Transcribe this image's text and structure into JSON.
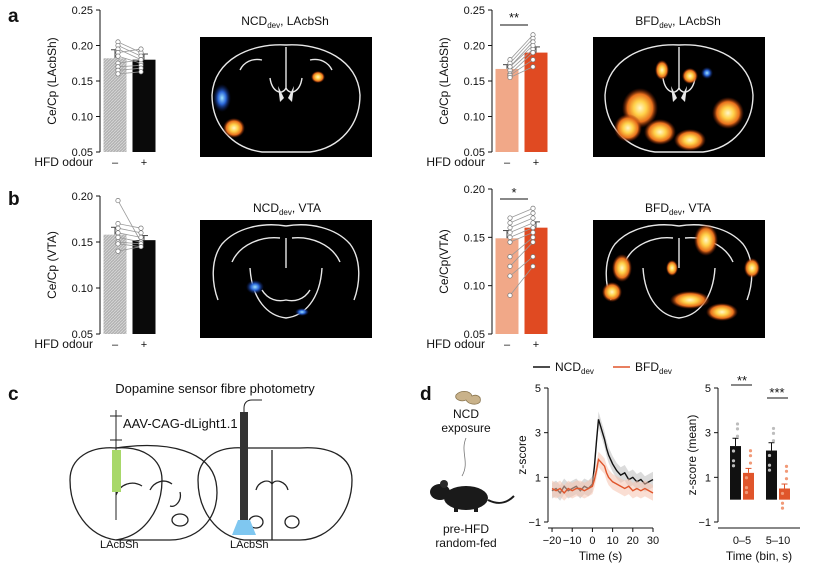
{
  "colors": {
    "ncd": "#111111",
    "bfd": "#e0552b",
    "ncd_bar": "#a8a8a8",
    "bfd_bar": "#f1a888",
    "bfd_bar_dark": "#e04a22",
    "green": "#a8d86a",
    "blue": "#5aa9e6"
  },
  "panels": {
    "a": "a",
    "b": "b",
    "c": "c",
    "d": "d"
  },
  "brain_titles": {
    "a_ncd": {
      "main": "NCD",
      "sub": "dev",
      "rest": ", LAcbSh"
    },
    "a_bfd": {
      "main": "BFD",
      "sub": "dev",
      "rest": ", LAcbSh"
    },
    "b_ncd": {
      "main": "NCD",
      "sub": "dev",
      "rest": ", VTA"
    },
    "b_bfd": {
      "main": "BFD",
      "sub": "dev",
      "rest": ", VTA"
    }
  },
  "hfd_odour_label": "HFD odour",
  "sig": {
    "a": "**",
    "b": "*",
    "d1": "**",
    "d2": "***"
  },
  "panel_c": {
    "title": "Dopamine sensor fibre photometry",
    "virus": "AAV-CAG-dLight1.1",
    "region_left": "LAcbSh",
    "region_right": "LAcbSh"
  },
  "panel_d": {
    "exposure": [
      "NCD",
      "exposure"
    ],
    "mouse": [
      "pre-HFD",
      "random-fed"
    ],
    "legend": [
      {
        "main": "NCD",
        "sub": "dev"
      },
      {
        "main": "BFD",
        "sub": "dev"
      }
    ]
  },
  "chart_data": [
    {
      "id": "a_ncd",
      "type": "bar",
      "categories": [
        "–",
        "+"
      ],
      "values": [
        0.182,
        0.18
      ],
      "errors": [
        0.012,
        0.008
      ],
      "ylabel": "Ce/Cp (LAcbSh)",
      "xlabel": "HFD odour",
      "ylim": [
        0.05,
        0.25
      ],
      "yticks": [
        "0.25",
        "0.20",
        "0.15",
        "0.10",
        "0.05"
      ],
      "pairs": [
        [
          0.205,
          0.19
        ],
        [
          0.2,
          0.185
        ],
        [
          0.195,
          0.18
        ],
        [
          0.19,
          0.195
        ],
        [
          0.185,
          0.175
        ],
        [
          0.175,
          0.18
        ],
        [
          0.17,
          0.172
        ],
        [
          0.165,
          0.168
        ],
        [
          0.16,
          0.163
        ]
      ]
    },
    {
      "id": "a_bfd",
      "type": "bar",
      "categories": [
        "–",
        "+"
      ],
      "values": [
        0.167,
        0.19
      ],
      "errors": [
        0.006,
        0.008
      ],
      "ylabel": "Ce/Cp (LAcbSh)",
      "xlabel": "HFD odour",
      "ylim": [
        0.05,
        0.25
      ],
      "yticks": [
        "0.25",
        "0.20",
        "0.15",
        "0.10",
        "0.05"
      ],
      "pairs": [
        [
          0.18,
          0.215
        ],
        [
          0.175,
          0.21
        ],
        [
          0.17,
          0.205
        ],
        [
          0.165,
          0.195
        ],
        [
          0.16,
          0.19
        ],
        [
          0.158,
          0.18
        ],
        [
          0.155,
          0.17
        ],
        [
          0.17,
          0.2
        ]
      ]
    },
    {
      "id": "b_ncd",
      "type": "bar",
      "categories": [
        "–",
        "+"
      ],
      "values": [
        0.158,
        0.152
      ],
      "errors": [
        0.008,
        0.005
      ],
      "ylabel": "Ce/Cp (VTA)",
      "xlabel": "HFD odour",
      "ylim": [
        0.05,
        0.2
      ],
      "yticks": [
        "0.20",
        "0.15",
        "0.10",
        "0.05"
      ],
      "pairs": [
        [
          0.195,
          0.15
        ],
        [
          0.17,
          0.165
        ],
        [
          0.165,
          0.16
        ],
        [
          0.16,
          0.155
        ],
        [
          0.155,
          0.15
        ],
        [
          0.15,
          0.148
        ],
        [
          0.148,
          0.145
        ],
        [
          0.14,
          0.145
        ]
      ]
    },
    {
      "id": "b_bfd",
      "type": "bar",
      "categories": [
        "–",
        "+"
      ],
      "values": [
        0.149,
        0.16
      ],
      "errors": [
        0.008,
        0.006
      ],
      "ylabel": "Ce/Cp(VTA)",
      "xlabel": "HFD odour",
      "ylim": [
        0.05,
        0.2
      ],
      "yticks": [
        "0.20",
        "0.15",
        "0.10",
        "0.05"
      ],
      "pairs": [
        [
          0.17,
          0.18
        ],
        [
          0.165,
          0.175
        ],
        [
          0.16,
          0.17
        ],
        [
          0.155,
          0.165
        ],
        [
          0.15,
          0.16
        ],
        [
          0.145,
          0.155
        ],
        [
          0.13,
          0.15
        ],
        [
          0.12,
          0.145
        ],
        [
          0.11,
          0.13
        ],
        [
          0.09,
          0.12
        ]
      ]
    },
    {
      "id": "d_trace",
      "type": "line",
      "xlabel": "Time (s)",
      "ylabel": "z-score",
      "xlim": [
        -22,
        30
      ],
      "ylim": [
        -1,
        5
      ],
      "xticks": [
        "−20",
        "−10",
        "0",
        "10",
        "20",
        "30"
      ],
      "yticks": [
        "5",
        "3",
        "1",
        "−1"
      ],
      "series": [
        {
          "name": "NCDdev",
          "x": [
            -20,
            -18,
            -16,
            -14,
            -12,
            -10,
            -8,
            -6,
            -4,
            -2,
            0,
            1,
            2,
            3,
            4,
            5,
            6,
            7,
            8,
            10,
            12,
            14,
            16,
            18,
            20,
            22,
            24,
            26,
            28,
            30
          ],
          "y": [
            0.4,
            0.5,
            0.3,
            0.6,
            0.4,
            0.5,
            0.6,
            0.4,
            0.6,
            0.5,
            0.7,
            1.5,
            2.6,
            3.6,
            3.3,
            3.0,
            2.7,
            2.3,
            2.0,
            1.6,
            1.3,
            1.1,
            1.2,
            0.9,
            1.0,
            0.8,
            0.9,
            0.7,
            0.8,
            0.9
          ]
        },
        {
          "name": "BFDdev",
          "x": [
            -20,
            -18,
            -16,
            -14,
            -12,
            -10,
            -8,
            -6,
            -4,
            -2,
            0,
            1,
            2,
            3,
            4,
            5,
            6,
            7,
            8,
            10,
            12,
            14,
            16,
            18,
            20,
            22,
            24,
            26,
            28,
            30
          ],
          "y": [
            0.5,
            0.4,
            0.5,
            0.3,
            0.5,
            0.4,
            0.5,
            0.5,
            0.4,
            0.5,
            0.6,
            0.9,
            1.3,
            1.8,
            1.7,
            1.6,
            1.5,
            1.2,
            1.0,
            0.8,
            0.7,
            0.6,
            0.5,
            0.6,
            0.4,
            0.5,
            0.4,
            0.5,
            0.4,
            0.3
          ]
        }
      ]
    },
    {
      "id": "d_bars",
      "type": "bar",
      "categories": [
        "0–5",
        "5–10"
      ],
      "xlabel": "Time (bin, s)",
      "ylabel": "z-score (mean)",
      "ylim": [
        -1,
        5
      ],
      "yticks": [
        "5",
        "3",
        "1",
        "−1"
      ],
      "series": [
        {
          "name": "NCDdev",
          "values": [
            2.4,
            2.2
          ],
          "errors": [
            0.35,
            0.35
          ]
        },
        {
          "name": "BFDdev",
          "values": [
            1.2,
            0.5
          ],
          "errors": [
            0.2,
            0.2
          ]
        }
      ]
    }
  ]
}
